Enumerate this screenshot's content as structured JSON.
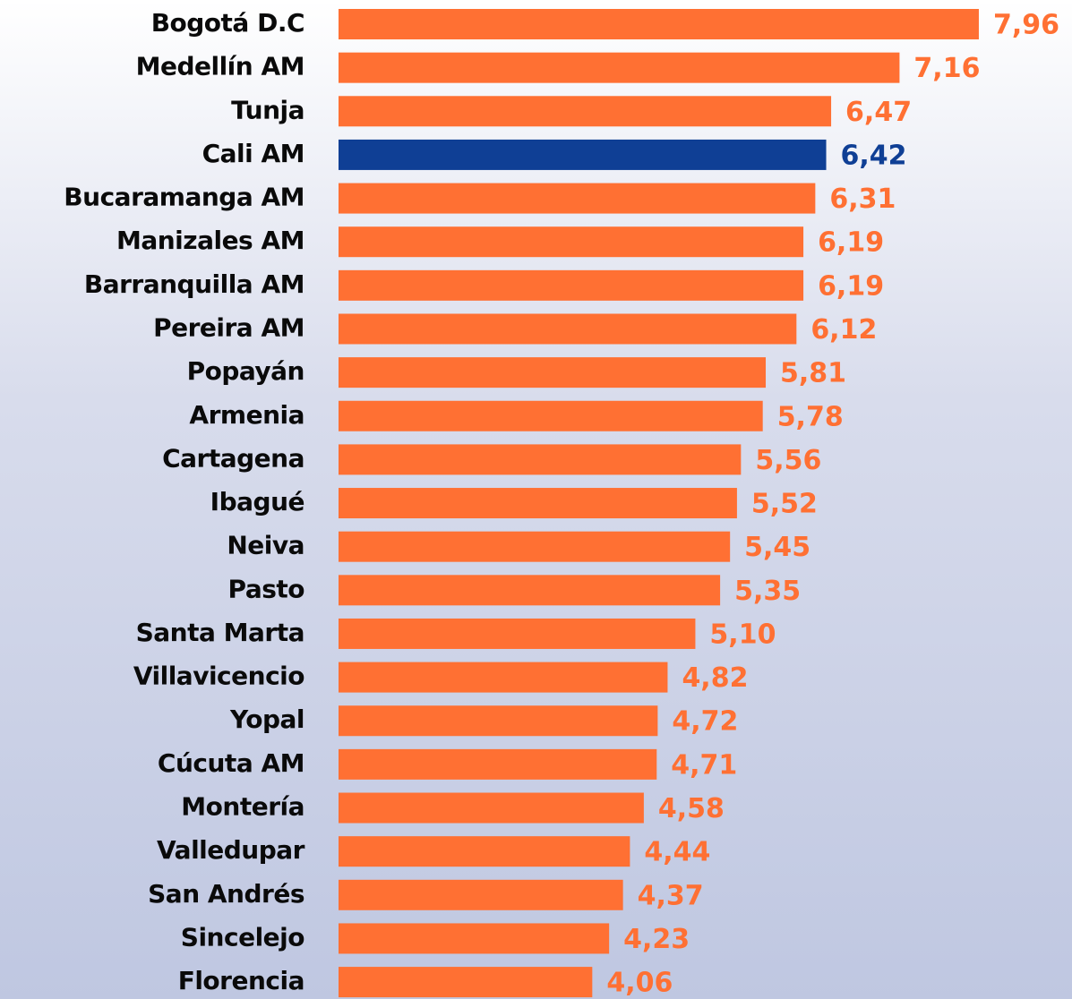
{
  "chart_data": {
    "type": "hbar",
    "categories": [
      "Bogotá D.C",
      "Medellín AM",
      "Tunja",
      "Cali AM",
      "Bucaramanga AM",
      "Manizales AM",
      "Barranquilla AM",
      "Pereira AM",
      "Popayán",
      "Armenia",
      "Cartagena",
      "Ibagué",
      "Neiva",
      "Pasto",
      "Santa Marta",
      "Villavicencio",
      "Yopal",
      "Cúcuta AM",
      "Montería",
      "Valledupar",
      "San Andrés",
      "Sincelejo",
      "Florencia"
    ],
    "values": [
      7.96,
      7.16,
      6.47,
      6.42,
      6.31,
      6.19,
      6.19,
      6.12,
      5.81,
      5.78,
      5.56,
      5.52,
      5.45,
      5.35,
      5.1,
      4.82,
      4.72,
      4.71,
      4.58,
      4.44,
      4.37,
      4.23,
      4.06
    ],
    "value_labels": [
      "7,96",
      "7,16",
      "6,47",
      "6,42",
      "6,31",
      "6,19",
      "6,19",
      "6,12",
      "5,81",
      "5,78",
      "5,56",
      "5,52",
      "5,45",
      "5,35",
      "5,10",
      "4,82",
      "4,72",
      "4,71",
      "4,58",
      "4,44",
      "4,37",
      "4,23",
      "4,06"
    ],
    "colors": [
      "#ff7033",
      "#ff7033",
      "#ff7033",
      "#0f3f95",
      "#ff7033",
      "#ff7033",
      "#ff7033",
      "#ff7033",
      "#ff7033",
      "#ff7033",
      "#ff7033",
      "#ff7033",
      "#ff7033",
      "#ff7033",
      "#ff7033",
      "#ff7033",
      "#ff7033",
      "#ff7033",
      "#ff7033",
      "#ff7033",
      "#ff7033",
      "#ff7033",
      "#ff7033"
    ],
    "xlim": [
      1.5,
      8.9
    ]
  }
}
